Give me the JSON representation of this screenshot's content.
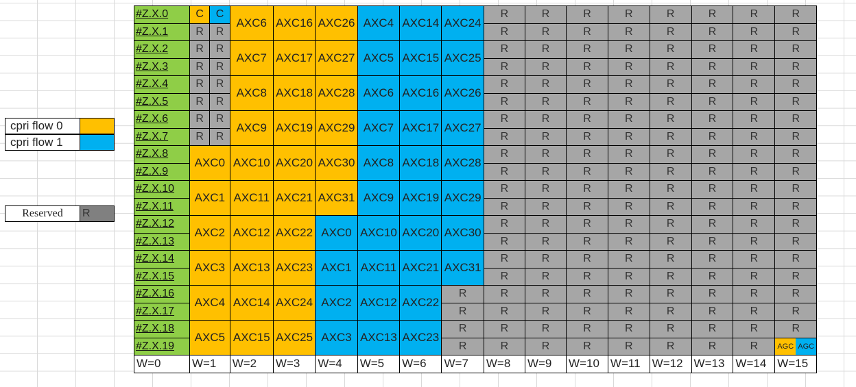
{
  "legend": {
    "flow0_label": "cpri flow 0",
    "flow1_label": "cpri flow 1",
    "reserved_label": "Reserved",
    "reserved_swatch": "R"
  },
  "colors": {
    "flow0": "#ffc000",
    "flow1": "#00b0f0",
    "reserved": "#a6a6a6",
    "row_label": "#8fce47"
  },
  "rows": [
    "#Z.X.0",
    "#Z.X.1",
    "#Z.X.2",
    "#Z.X.3",
    "#Z.X.4",
    "#Z.X.5",
    "#Z.X.6",
    "#Z.X.7",
    "#Z.X.8",
    "#Z.X.9",
    "#Z.X.10",
    "#Z.X.11",
    "#Z.X.12",
    "#Z.X.13",
    "#Z.X.14",
    "#Z.X.15",
    "#Z.X.16",
    "#Z.X.17",
    "#Z.X.18",
    "#Z.X.19"
  ],
  "w_labels": [
    "W=0",
    "W=1",
    "W=2",
    "W=3",
    "W=4",
    "W=5",
    "W=6",
    "W=7",
    "W=8",
    "W=9",
    "W=10",
    "W=11",
    "W=12",
    "W=13",
    "W=14",
    "W=15"
  ],
  "w1_control": {
    "row0": [
      {
        "text": "C",
        "flow": "0"
      },
      {
        "text": "C",
        "flow": "1"
      }
    ],
    "rows1_7": "R"
  },
  "w1_axc": [
    "AXC0",
    "AXC1",
    "AXC2",
    "AXC3",
    "AXC4",
    "AXC5"
  ],
  "pairs": [
    [
      "AXC6",
      "AXC16",
      "AXC26",
      "AXC4",
      "AXC14",
      "AXC24"
    ],
    [
      "AXC7",
      "AXC17",
      "AXC27",
      "AXC5",
      "AXC15",
      "AXC25"
    ],
    [
      "AXC8",
      "AXC18",
      "AXC28",
      "AXC6",
      "AXC16",
      "AXC26"
    ],
    [
      "AXC9",
      "AXC19",
      "AXC29",
      "AXC7",
      "AXC17",
      "AXC27"
    ],
    [
      "AXC10",
      "AXC20",
      "AXC30",
      "AXC8",
      "AXC18",
      "AXC28"
    ],
    [
      "AXC11",
      "AXC21",
      "AXC31",
      "AXC9",
      "AXC19",
      "AXC29"
    ],
    [
      "AXC12",
      "AXC22",
      "AXC0",
      "AXC10",
      "AXC20",
      "AXC30"
    ],
    [
      "AXC13",
      "AXC23",
      "AXC1",
      "AXC11",
      "AXC21",
      "AXC31"
    ],
    [
      "AXC14",
      "AXC24",
      "AXC2",
      "AXC12",
      "AXC22",
      "R"
    ],
    [
      "AXC15",
      "AXC25",
      "AXC3",
      "AXC13",
      "AXC23",
      "R"
    ]
  ],
  "pair_flows": [
    [
      "0",
      "0",
      "0",
      "1",
      "1",
      "1"
    ],
    [
      "0",
      "0",
      "0",
      "1",
      "1",
      "1"
    ],
    [
      "0",
      "0",
      "0",
      "1",
      "1",
      "1"
    ],
    [
      "0",
      "0",
      "0",
      "1",
      "1",
      "1"
    ],
    [
      "0",
      "0",
      "0",
      "1",
      "1",
      "1"
    ],
    [
      "0",
      "0",
      "0",
      "1",
      "1",
      "1"
    ],
    [
      "0",
      "0",
      "1",
      "1",
      "1",
      "1"
    ],
    [
      "0",
      "0",
      "1",
      "1",
      "1",
      "1"
    ],
    [
      "0",
      "0",
      "1",
      "1",
      "1",
      "r"
    ],
    [
      "0",
      "0",
      "1",
      "1",
      "1",
      "r"
    ]
  ],
  "reserved_text": "R",
  "agc": [
    {
      "text": "AGC",
      "flow": "0"
    },
    {
      "text": "AGC",
      "flow": "1"
    }
  ]
}
